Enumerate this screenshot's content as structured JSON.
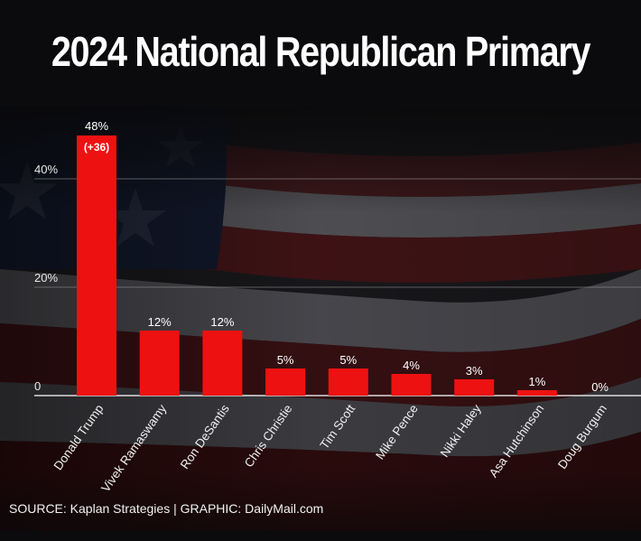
{
  "colors": {
    "bar": "#ee1111",
    "background": "#0d0d10",
    "text": "#ffffff"
  },
  "chart_data": {
    "type": "bar",
    "title": "2024 National Republican Primary",
    "categories": [
      "Donald Trump",
      "Vivek Ramaswamy",
      "Ron DeSantis",
      "Chris Christie",
      "Tim Scott",
      "Mike Pence",
      "Nikki Haley",
      "Asa Hutchinson",
      "Doug Burgum"
    ],
    "values": [
      48,
      12,
      12,
      5,
      5,
      4,
      3,
      1,
      0
    ],
    "value_labels": [
      "48%",
      "12%",
      "12%",
      "5%",
      "5%",
      "4%",
      "3%",
      "1%",
      "0%"
    ],
    "annotations": [
      {
        "category": "Donald Trump",
        "text": "(+36)"
      }
    ],
    "yticks": [
      {
        "value": 0,
        "label": "0"
      },
      {
        "value": 20,
        "label": "20%"
      },
      {
        "value": 40,
        "label": "40%"
      }
    ],
    "ylim": [
      0,
      50
    ],
    "xlabel": "",
    "ylabel": "",
    "grid": true
  },
  "footer": {
    "source": "SOURCE: Kaplan Strategies  |  GRAPHIC: DailyMail.com"
  }
}
